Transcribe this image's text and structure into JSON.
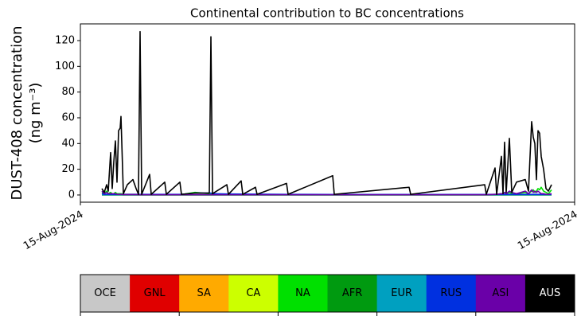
{
  "chart_data": {
    "type": "line",
    "title": "Continental contribution to BC concentrations",
    "ylabel": [
      "DUST-408 concentration",
      "(ng m⁻³)"
    ],
    "x": [
      27,
      30,
      33,
      35,
      38,
      40,
      42,
      44,
      46,
      48,
      50,
      51,
      54,
      59,
      66,
      70,
      73,
      75,
      77,
      87,
      89,
      106,
      108,
      125,
      127,
      144,
      162,
      164,
      166,
      184,
      186,
      202,
      204,
      220,
      222,
      259,
      261,
      317,
      319,
      413,
      415,
      508,
      510,
      521,
      523,
      529,
      531,
      533,
      535,
      539,
      542,
      548,
      559,
      563,
      567,
      569,
      571,
      573,
      575,
      577,
      579,
      582,
      585,
      588,
      592
    ],
    "xlim": [
      0,
      621
    ],
    "xticks": [
      {
        "value": 0,
        "label": "15-Aug-2024"
      },
      {
        "value": 621,
        "label": "15-Aug-2024"
      }
    ],
    "ylim": [
      -5.6,
      133
    ],
    "yticks": [
      0,
      20,
      40,
      60,
      80,
      100,
      120
    ],
    "series": [
      {
        "name": "OCE",
        "color": "#c8c8c8",
        "values": [
          0.1,
          0.1,
          0.1,
          0.1,
          0.1,
          0.1,
          0.1,
          0.1,
          0.1,
          0.1,
          0.1,
          0.1,
          0.1,
          0.1,
          0.1,
          0.1,
          0.1,
          0.1,
          0.1,
          0.1,
          0.1,
          0.1,
          0.1,
          0.1,
          0.1,
          0.1,
          0.1,
          0.1,
          0.1,
          0.1,
          0.1,
          0.1,
          0.1,
          0.1,
          0.1,
          0.1,
          0.1,
          0.1,
          0.1,
          0.1,
          0.1,
          0.1,
          0.1,
          0.1,
          0.1,
          0.1,
          0.1,
          0.1,
          0.1,
          0.1,
          0.1,
          0.1,
          0.1,
          0.1,
          0.1,
          0.1,
          0.1,
          0.1,
          0.1,
          0.1,
          0.1,
          0.1,
          0.1,
          0.1,
          0.1
        ]
      },
      {
        "name": "GNL",
        "color": "#e00000",
        "values": [
          0.1,
          0.1,
          0.1,
          0.1,
          0.1,
          0.1,
          0.1,
          0.1,
          0.1,
          0.1,
          0.1,
          0.1,
          0.1,
          0.1,
          0.1,
          0.1,
          0.1,
          0.1,
          0.1,
          0.1,
          0.1,
          0.1,
          0.1,
          0.1,
          0.1,
          0.1,
          0.1,
          0.1,
          0.1,
          0.1,
          0.1,
          0.1,
          0.1,
          0.1,
          0.1,
          0.1,
          0.1,
          0.1,
          0.1,
          0.1,
          0.1,
          0.1,
          0.1,
          0.1,
          0.1,
          0.1,
          0.1,
          0.1,
          0.1,
          0.1,
          0.1,
          0.1,
          0.1,
          0.1,
          0.1,
          0.1,
          0.1,
          0.1,
          0.1,
          0.1,
          0.1,
          0.1,
          0.1,
          0.1,
          0.1
        ]
      },
      {
        "name": "SA",
        "color": "#ffaa00",
        "values": [
          0.1,
          0.1,
          0.1,
          0.1,
          0.1,
          0.1,
          0.1,
          0.1,
          0.1,
          0.1,
          0.1,
          0.1,
          0.1,
          0.1,
          0.1,
          0.1,
          0.1,
          0.1,
          0.1,
          0.1,
          0.1,
          0.1,
          0.1,
          0.1,
          0.1,
          0.1,
          0.1,
          0.1,
          0.1,
          0.1,
          0.1,
          0.1,
          0.1,
          0.1,
          0.1,
          0.1,
          0.1,
          0.1,
          0.1,
          0.1,
          0.1,
          0.1,
          0.1,
          0.1,
          0.1,
          0.1,
          0.1,
          0.1,
          0.1,
          0.1,
          0.1,
          0.1,
          0.1,
          0.1,
          0.1,
          0.1,
          0.1,
          0.1,
          0.1,
          0.1,
          0.1,
          0.1,
          0.1,
          0.1,
          0.1
        ]
      },
      {
        "name": "CA",
        "color": "#ccff00",
        "values": [
          0.1,
          0.1,
          0.1,
          0.1,
          0.1,
          0.1,
          0.1,
          0.1,
          0.1,
          0.1,
          0.1,
          0.1,
          0.1,
          0.1,
          0.1,
          0.1,
          0.1,
          0.1,
          0.1,
          0.1,
          0.1,
          0.1,
          0.1,
          0.1,
          0.1,
          0.1,
          0.1,
          0.1,
          0.1,
          0.1,
          0.1,
          0.1,
          0.1,
          0.1,
          0.1,
          0.1,
          0.1,
          0.1,
          0.1,
          0.1,
          0.1,
          0.1,
          0.1,
          0.1,
          0.1,
          0.1,
          0.1,
          0.1,
          0.1,
          0.1,
          0.1,
          0.1,
          0.1,
          0.1,
          0.1,
          0.1,
          0.1,
          0.1,
          0.1,
          0.1,
          0.1,
          0.1,
          0.1,
          0.1,
          0.1
        ]
      },
      {
        "name": "NA",
        "color": "#00e000",
        "values": [
          2,
          1,
          3,
          1,
          2,
          1,
          1,
          2,
          1,
          1,
          1,
          1,
          0.5,
          0.5,
          0.5,
          0.5,
          0.3,
          0.3,
          0.3,
          0.3,
          0.3,
          0.3,
          0.3,
          0.3,
          0.3,
          2,
          1,
          1,
          0.5,
          0.3,
          0.3,
          0.3,
          0.3,
          0.3,
          0.3,
          0.3,
          0.3,
          0.3,
          0.3,
          0.3,
          0.3,
          0.3,
          0.3,
          0.5,
          0.5,
          1,
          1,
          2,
          1,
          2,
          1,
          1,
          2,
          1,
          3,
          4,
          2,
          3,
          5,
          4,
          6,
          3,
          2,
          1,
          4
        ]
      },
      {
        "name": "AFR",
        "color": "#009a10",
        "values": [
          0.1,
          0.1,
          0.1,
          0.1,
          0.1,
          0.1,
          0.1,
          0.1,
          0.1,
          0.1,
          0.1,
          0.1,
          0.1,
          0.1,
          0.1,
          0.1,
          0.1,
          0.1,
          0.1,
          0.1,
          0.1,
          0.1,
          0.1,
          0.1,
          0.1,
          0.1,
          0.1,
          0.1,
          0.1,
          0.1,
          0.1,
          0.1,
          0.1,
          0.1,
          0.1,
          0.1,
          0.1,
          0.1,
          0.1,
          0.1,
          0.1,
          0.1,
          0.1,
          0.1,
          0.1,
          0.1,
          0.1,
          0.1,
          0.1,
          0.1,
          0.1,
          0.1,
          0.1,
          0.1,
          0.1,
          0.1,
          0.1,
          0.1,
          0.1,
          0.1,
          0.1,
          0.1,
          0.1,
          0.1,
          0.1
        ]
      },
      {
        "name": "EUR",
        "color": "#00a0c0",
        "values": [
          0.1,
          0.1,
          0.1,
          0.1,
          0.1,
          0.1,
          0.1,
          0.1,
          0.1,
          0.1,
          0.1,
          0.1,
          0.1,
          0.1,
          0.1,
          0.1,
          0.1,
          0.1,
          0.1,
          0.1,
          0.1,
          0.1,
          0.1,
          0.1,
          0.1,
          0.1,
          0.1,
          0.1,
          0.1,
          0.1,
          0.1,
          0.1,
          0.1,
          0.1,
          0.1,
          0.1,
          0.1,
          0.1,
          0.1,
          0.1,
          0.1,
          0.1,
          0.1,
          0.1,
          0.1,
          0.1,
          0.1,
          0.1,
          0.1,
          0.1,
          0.1,
          0.1,
          0.1,
          0.1,
          0.1,
          0.1,
          0.1,
          0.1,
          0.1,
          0.1,
          0.1,
          0.1,
          0.1,
          0.1,
          0.1
        ]
      },
      {
        "name": "RUS",
        "color": "#0030e0",
        "values": [
          1,
          0.5,
          0.5,
          0.5,
          0.5,
          0.5,
          0.5,
          0.5,
          0.5,
          0.5,
          0.5,
          0.5,
          0.5,
          0.5,
          0.5,
          0.5,
          0.5,
          0.5,
          0.5,
          0.5,
          0.5,
          0.5,
          0.5,
          0.5,
          0.5,
          1.5,
          1.5,
          1.5,
          1,
          0.8,
          0.8,
          0.7,
          0.7,
          0.6,
          0.6,
          0.5,
          0.5,
          0.4,
          0.4,
          0.4,
          0.4,
          0.4,
          0.4,
          0.5,
          0.5,
          0.5,
          0.5,
          0.5,
          0.5,
          0.5,
          0.5,
          0.5,
          0.5,
          0.5,
          0.5,
          0.5,
          0.5,
          0.5,
          0.5,
          0.5,
          0.5,
          0.5,
          0.5,
          0.5,
          0.5
        ]
      },
      {
        "name": "ASI",
        "color": "#6a00a8",
        "values": [
          3,
          1,
          2,
          1,
          1,
          1,
          1,
          1,
          0.5,
          0.5,
          0.5,
          0.5,
          0.3,
          0.3,
          0.3,
          0.3,
          0.2,
          0.2,
          0.2,
          0.2,
          0.2,
          0.2,
          0.2,
          0.2,
          0.2,
          0.2,
          0.2,
          0.2,
          0.2,
          0.2,
          0.2,
          0.2,
          0.2,
          0.2,
          0.2,
          0.2,
          0.2,
          0.2,
          0.2,
          0.2,
          0.2,
          0.2,
          0.2,
          0.5,
          0.5,
          1,
          1,
          2,
          1,
          3,
          2,
          1,
          3,
          1,
          4,
          2,
          3,
          2,
          3,
          2,
          1,
          1,
          0.5,
          0.5,
          1
        ]
      },
      {
        "name": "AUS",
        "color": "#000000",
        "values": [
          5,
          2,
          8,
          3,
          33,
          5,
          26,
          42,
          10,
          50,
          52,
          61,
          1,
          8,
          12,
          5,
          0.5,
          127,
          0.5,
          16,
          0.5,
          10,
          0.5,
          10,
          0.5,
          1.5,
          1.5,
          123,
          1,
          8,
          0.5,
          11,
          0.5,
          6,
          0.5,
          9,
          0.5,
          15,
          0.5,
          6,
          0.5,
          8,
          0.5,
          21,
          0.5,
          30,
          1,
          41,
          2,
          44,
          2,
          10,
          12,
          3,
          57,
          45,
          40,
          12,
          50,
          48,
          30,
          20,
          5,
          3,
          8
        ]
      }
    ]
  }
}
